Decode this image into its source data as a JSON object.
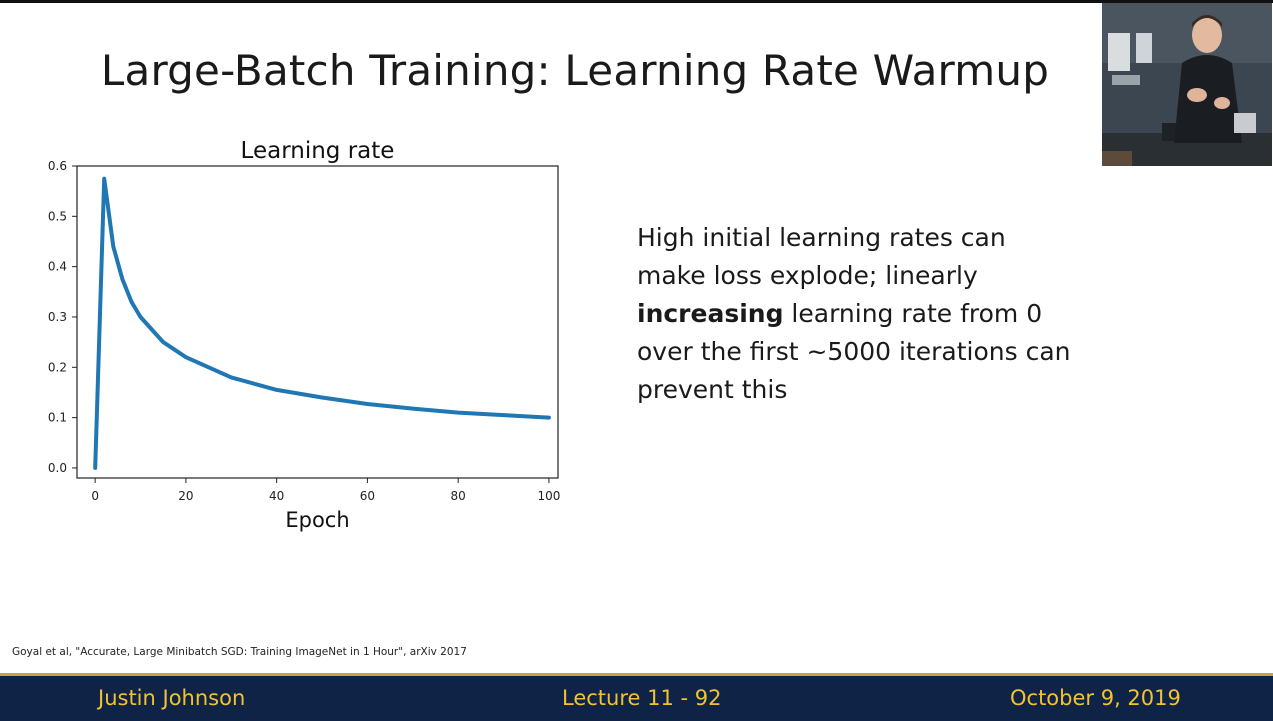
{
  "slide": {
    "title": "Large-Batch Training: Learning Rate Warmup",
    "body": {
      "line1": "High initial learning rates can",
      "line2": "make loss explode; linearly",
      "line3_bold": "increasing",
      "line3_rest": " learning rate from 0",
      "line4": "over the first ~5000 iterations can",
      "line5": "prevent this"
    },
    "citation": "Goyal et al, \"Accurate, Large Minibatch SGD: Training ImageNet in 1 Hour\", arXiv 2017",
    "footer": {
      "presenter": "Justin Johnson",
      "lecture": "Lecture 11 - 92",
      "date": "October 9, 2019"
    }
  },
  "colors": {
    "footer_bg": "#0f2347",
    "footer_text": "#f2c230",
    "line": "#1f77b4"
  },
  "chart_data": {
    "type": "line",
    "title": "Learning rate",
    "xlabel": "Epoch",
    "ylabel": "",
    "xlim": [
      -4,
      102
    ],
    "ylim": [
      -0.02,
      0.6
    ],
    "xticks": [
      0,
      20,
      40,
      60,
      80,
      100
    ],
    "yticks": [
      0.0,
      0.1,
      0.2,
      0.3,
      0.4,
      0.5,
      0.6
    ],
    "xtick_labels": [
      "0",
      "20",
      "40",
      "60",
      "80",
      "100"
    ],
    "ytick_labels": [
      "0.0",
      "0.1",
      "0.2",
      "0.3",
      "0.4",
      "0.5",
      "0.6"
    ],
    "grid": false,
    "series": [
      {
        "x": [
          0,
          2,
          4,
          6,
          8,
          10,
          15,
          20,
          30,
          40,
          50,
          60,
          70,
          80,
          90,
          100
        ],
        "values": [
          0.0,
          0.575,
          0.44,
          0.375,
          0.33,
          0.3,
          0.25,
          0.22,
          0.18,
          0.155,
          0.14,
          0.127,
          0.118,
          0.11,
          0.105,
          0.1
        ]
      }
    ]
  }
}
